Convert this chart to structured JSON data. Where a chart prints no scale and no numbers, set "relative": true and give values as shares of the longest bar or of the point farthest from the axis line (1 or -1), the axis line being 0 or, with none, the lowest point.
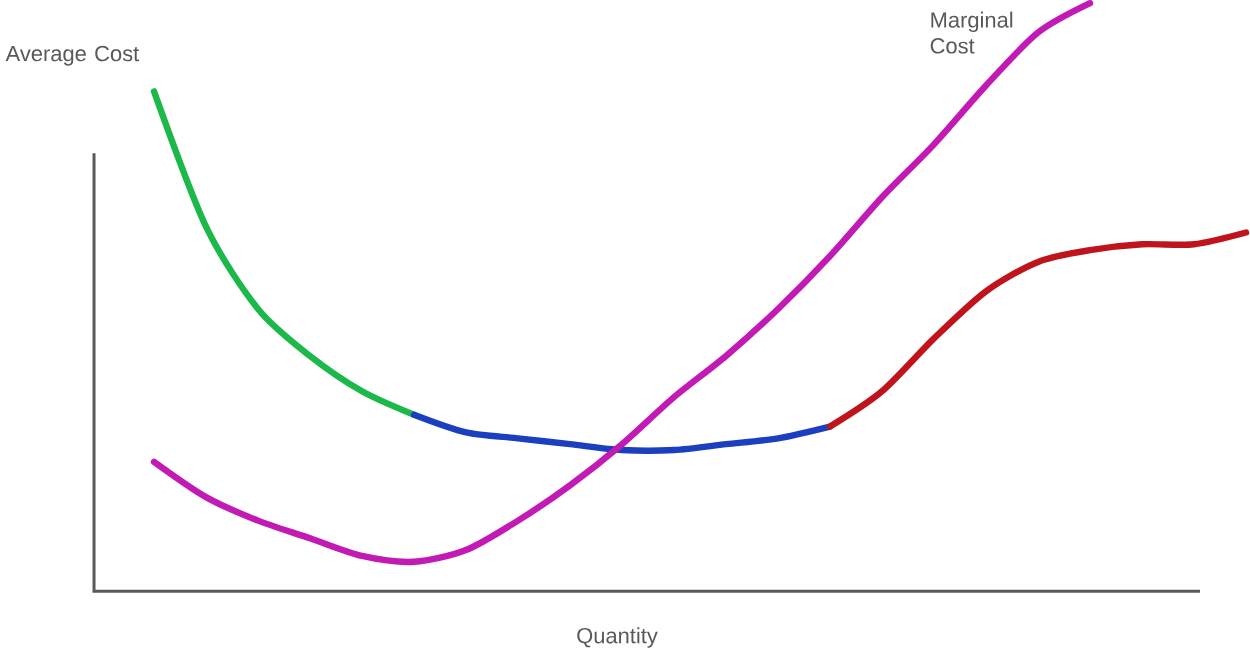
{
  "chart_data": {
    "type": "line",
    "relative": true,
    "xlabel": "Quantity",
    "categories": [
      null,
      null,
      null,
      null,
      null,
      null,
      null,
      null,
      null,
      null,
      null,
      null,
      null,
      null,
      null,
      null,
      null,
      null,
      null,
      null,
      null,
      null
    ],
    "series": [
      {
        "name": "Average Cost",
        "color": "#1db84a",
        "values": [
          0.85,
          0.62,
          0.48,
          0.4,
          0.34,
          0.3,
          null,
          null,
          null,
          null,
          null,
          null,
          null,
          null,
          null,
          null,
          null,
          null,
          null,
          null,
          null,
          null
        ]
      },
      {
        "color": "#1a3fbf",
        "values": [
          null,
          null,
          null,
          null,
          null,
          0.3,
          0.27,
          0.26,
          0.25,
          0.24,
          0.24,
          0.25,
          0.26,
          0.28,
          null,
          null,
          null,
          null,
          null,
          null,
          null,
          null
        ]
      },
      {
        "color": "#c0141c",
        "values": [
          null,
          null,
          null,
          null,
          null,
          null,
          null,
          null,
          null,
          null,
          null,
          null,
          null,
          0.28,
          0.34,
          0.43,
          0.51,
          0.56,
          0.58,
          0.59,
          0.59,
          0.61
        ]
      },
      {
        "name": "Marginal Cost",
        "color": "#c21ab5",
        "values": [
          0.22,
          0.16,
          0.12,
          0.09,
          0.06,
          0.05,
          0.07,
          0.12,
          0.18,
          0.25,
          0.33,
          0.4,
          0.48,
          0.57,
          0.67,
          0.76,
          0.86,
          0.95,
          1,
          null,
          null,
          null
        ]
      }
    ]
  }
}
